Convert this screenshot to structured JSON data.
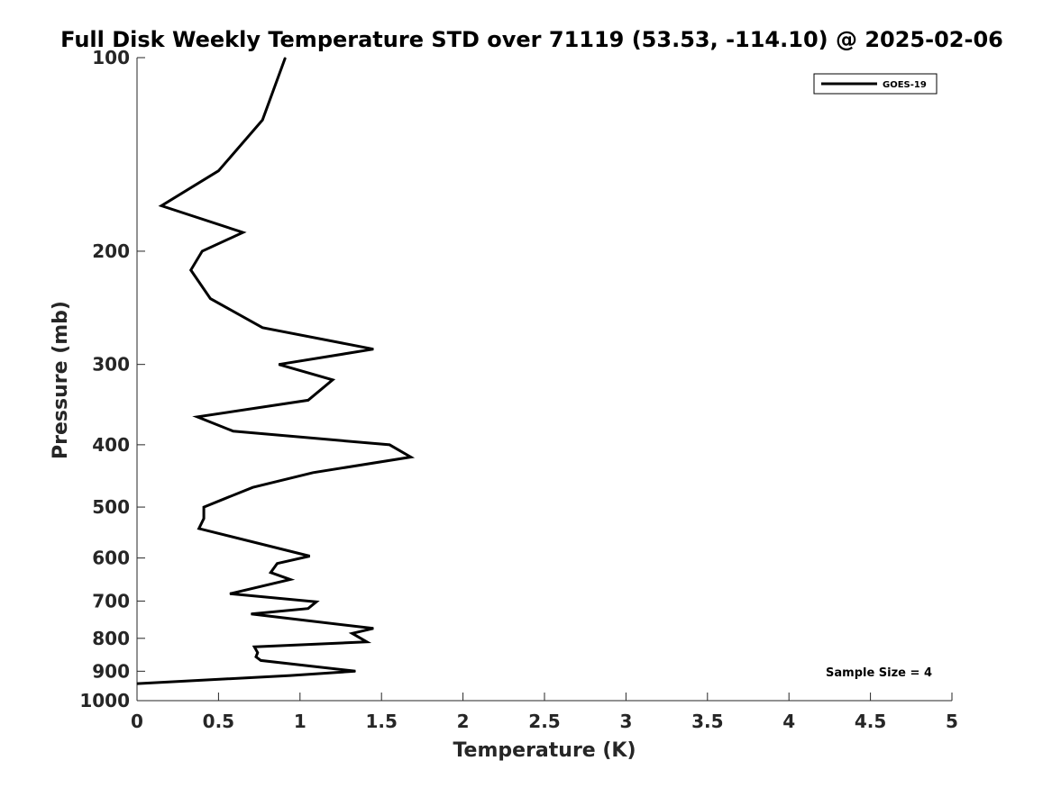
{
  "chart_data": {
    "type": "line",
    "title": "Full Disk Weekly Temperature STD over 71119 (53.53, -114.10) @ 2025-02-06",
    "xlabel": "Temperature (K)",
    "ylabel": "Pressure (mb)",
    "xlim": [
      0,
      5
    ],
    "ylim": [
      1000,
      100
    ],
    "yscale": "log",
    "y_reversed": true,
    "grid": false,
    "legend_position": "top-right",
    "x_ticks": [
      "0",
      "0.5",
      "1",
      "1.5",
      "2",
      "2.5",
      "3",
      "3.5",
      "4",
      "4.5",
      "5"
    ],
    "y_ticks": [
      "100",
      "200",
      "300",
      "400",
      "500",
      "600",
      "700",
      "800",
      "900",
      "1000"
    ],
    "annotation": "Sample Size = 4",
    "series": [
      {
        "name": "GOES-19",
        "color": "#000000",
        "points": [
          [
            0.91,
            100
          ],
          [
            0.77,
            125
          ],
          [
            0.5,
            150
          ],
          [
            0.15,
            170
          ],
          [
            0.65,
            187
          ],
          [
            0.4,
            200
          ],
          [
            0.33,
            214
          ],
          [
            0.45,
            237
          ],
          [
            0.77,
            263
          ],
          [
            1.45,
            284
          ],
          [
            0.87,
            300
          ],
          [
            1.2,
            317
          ],
          [
            1.05,
            341
          ],
          [
            0.37,
            362
          ],
          [
            0.59,
            381
          ],
          [
            1.55,
            400
          ],
          [
            1.68,
            418
          ],
          [
            1.08,
            442
          ],
          [
            0.71,
            466
          ],
          [
            0.53,
            486
          ],
          [
            0.41,
            500
          ],
          [
            0.41,
            521
          ],
          [
            0.38,
            540
          ],
          [
            1.06,
            596
          ],
          [
            0.86,
            612
          ],
          [
            0.82,
            632
          ],
          [
            0.94,
            648
          ],
          [
            0.57,
            682
          ],
          [
            1.1,
            702
          ],
          [
            1.05,
            719
          ],
          [
            0.7,
            733
          ],
          [
            1.45,
            772
          ],
          [
            1.32,
            786
          ],
          [
            1.41,
            810
          ],
          [
            0.72,
            825
          ],
          [
            0.74,
            842
          ],
          [
            0.73,
            855
          ],
          [
            0.76,
            866
          ],
          [
            1.34,
            900
          ],
          [
            0.94,
            914
          ],
          [
            0.0,
            941
          ]
        ]
      }
    ]
  }
}
